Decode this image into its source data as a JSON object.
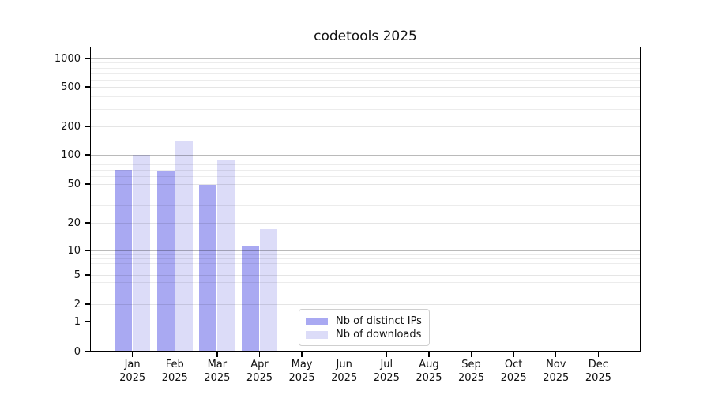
{
  "chart_data": {
    "type": "bar",
    "title": "codetools 2025",
    "x_axis": {
      "months": [
        "Jan",
        "Feb",
        "Mar",
        "Apr",
        "May",
        "Jun",
        "Jul",
        "Aug",
        "Sep",
        "Oct",
        "Nov",
        "Dec"
      ],
      "year": "2025"
    },
    "y_axis": {
      "scale": "symlog",
      "tick_labels": [
        "1000",
        "500",
        "200",
        "100",
        "50",
        "20",
        "10",
        "5",
        "2",
        "1",
        "0"
      ],
      "tick_values": [
        1000,
        500,
        200,
        100,
        50,
        20,
        10,
        5,
        2,
        1,
        0
      ],
      "ylim": [
        0,
        1300
      ],
      "grid": true
    },
    "series": [
      {
        "name": "Nb of distinct IPs",
        "color": "#a9a9f2",
        "values": [
          70,
          68,
          49,
          11,
          0,
          0,
          0,
          0,
          0,
          0,
          0,
          0
        ]
      },
      {
        "name": "Nb of downloads",
        "color": "#dcdcf8",
        "values": [
          100,
          140,
          90,
          17,
          0,
          0,
          0,
          0,
          0,
          0,
          0,
          0
        ]
      }
    ],
    "legend": {
      "position": "bottom-center",
      "entries": [
        "Nb of distinct IPs",
        "Nb of downloads"
      ]
    }
  }
}
